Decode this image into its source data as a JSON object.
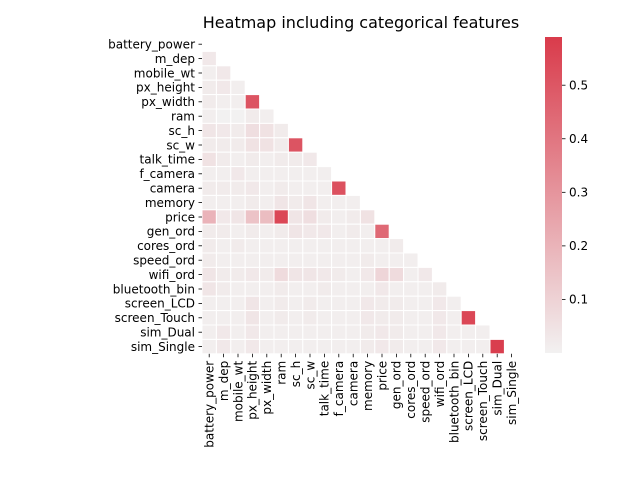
{
  "chart_data": {
    "type": "heatmap",
    "title": "Heatmap including categorical features",
    "labels": [
      "battery_power",
      "m_dep",
      "mobile_wt",
      "px_height",
      "px_width",
      "ram",
      "sc_h",
      "sc_w",
      "talk_time",
      "f_camera",
      "camera",
      "memory",
      "price",
      "gen_ord",
      "cores_ord",
      "speed_ord",
      "wifi_ord",
      "bluetooth_bin",
      "screen_LCD",
      "screen_Touch",
      "sim_Dual",
      "sim_Single"
    ],
    "mask": "upper triangle including diagonal",
    "values": [
      [],
      [
        0.03
      ],
      [
        0.01,
        0.03
      ],
      [
        0.02,
        0.03,
        0.01
      ],
      [
        0.02,
        0.01,
        0.01,
        0.51
      ],
      [
        0.01,
        0.0,
        0.0,
        0.02,
        0.01
      ],
      [
        0.04,
        0.03,
        0.02,
        0.06,
        0.05,
        0.02
      ],
      [
        0.02,
        0.02,
        0.02,
        0.05,
        0.05,
        0.02,
        0.51
      ],
      [
        0.05,
        0.02,
        0.01,
        0.02,
        0.01,
        0.02,
        0.02,
        0.03
      ],
      [
        0.01,
        0.01,
        0.03,
        0.01,
        0.01,
        0.01,
        0.01,
        0.01,
        0.01
      ],
      [
        0.02,
        0.02,
        0.02,
        0.03,
        0.01,
        0.02,
        0.01,
        0.01,
        0.01,
        0.52
      ],
      [
        0.01,
        0.01,
        0.01,
        0.02,
        0.01,
        0.04,
        0.02,
        0.04,
        0.01,
        0.01,
        0.01
      ],
      [
        0.2,
        0.03,
        0.04,
        0.15,
        0.17,
        0.55,
        0.04,
        0.06,
        0.02,
        0.01,
        0.02,
        0.05
      ],
      [
        0.02,
        0.02,
        0.01,
        0.02,
        0.01,
        0.02,
        0.04,
        0.03,
        0.03,
        0.01,
        0.02,
        0.01,
        0.44
      ],
      [
        0.02,
        0.01,
        0.02,
        0.01,
        0.01,
        0.01,
        0.01,
        0.01,
        0.01,
        0.01,
        0.01,
        0.01,
        0.01,
        0.02
      ],
      [
        0.02,
        0.01,
        0.01,
        0.01,
        0.01,
        0.01,
        0.01,
        0.01,
        0.01,
        0.01,
        0.01,
        0.02,
        0.01,
        0.01,
        0.01
      ],
      [
        0.04,
        0.02,
        0.02,
        0.03,
        0.02,
        0.07,
        0.04,
        0.04,
        0.03,
        0.02,
        0.01,
        0.03,
        0.09,
        0.07,
        0.01,
        0.03
      ],
      [
        0.04,
        0.02,
        0.01,
        0.01,
        0.01,
        0.02,
        0.01,
        0.01,
        0.02,
        0.01,
        0.01,
        0.01,
        0.03,
        0.01,
        0.01,
        0.01,
        0.02
      ],
      [
        0.01,
        0.01,
        0.01,
        0.04,
        0.01,
        0.02,
        0.01,
        0.02,
        0.01,
        0.01,
        0.01,
        0.03,
        0.02,
        0.02,
        0.01,
        0.01,
        0.03,
        0.01
      ],
      [
        0.01,
        0.01,
        0.01,
        0.04,
        0.01,
        0.02,
        0.01,
        0.02,
        0.01,
        0.01,
        0.01,
        0.03,
        0.02,
        0.02,
        0.01,
        0.01,
        0.03,
        0.01,
        0.55
      ],
      [
        0.01,
        0.03,
        0.01,
        0.03,
        0.01,
        0.01,
        0.01,
        0.01,
        0.01,
        0.01,
        0.01,
        0.02,
        0.03,
        0.02,
        0.01,
        0.01,
        0.03,
        0.01,
        0.01,
        0.01
      ],
      [
        0.01,
        0.03,
        0.01,
        0.03,
        0.01,
        0.01,
        0.01,
        0.01,
        0.01,
        0.01,
        0.01,
        0.02,
        0.03,
        0.02,
        0.01,
        0.01,
        0.03,
        0.01,
        0.01,
        0.01,
        0.58
      ]
    ],
    "colorbar": {
      "vmin": 0.0,
      "vmax": 0.59,
      "ticks": [
        0.1,
        0.2,
        0.3,
        0.4,
        0.5
      ],
      "tick_labels": [
        "0.1",
        "0.2",
        "0.3",
        "0.4",
        "0.5"
      ]
    },
    "colors": {
      "low": "#f2f1f1",
      "high": "#d93b4b",
      "grid": "#ffffff"
    }
  }
}
